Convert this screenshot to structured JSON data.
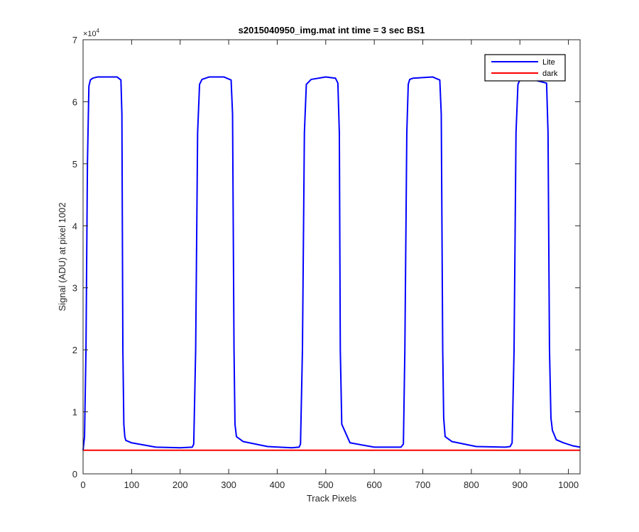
{
  "chart_data": {
    "type": "line",
    "title": "s2015040950_img.mat int time = 3 sec   BS1",
    "xlabel": "Track Pixels",
    "ylabel": "Signal (ADU) at pixel 1002",
    "xlim": [
      0,
      1024
    ],
    "ylim": [
      0,
      70000
    ],
    "xticks": [
      0,
      100,
      200,
      300,
      400,
      500,
      600,
      700,
      800,
      900,
      1000
    ],
    "xtick_labels": [
      "0",
      "100",
      "200",
      "300",
      "400",
      "500",
      "600",
      "700",
      "800",
      "900",
      "1000"
    ],
    "yticks": [
      0,
      10000,
      20000,
      30000,
      40000,
      50000,
      60000,
      70000
    ],
    "ytick_labels": [
      "0",
      "1",
      "2",
      "3",
      "4",
      "5",
      "6",
      "7"
    ],
    "y_exponent_base": "×10",
    "y_exponent_power": "4",
    "grid": false,
    "legend_position": "top-right",
    "series": [
      {
        "name": "Lite",
        "color": "#0000ff",
        "x": [
          0,
          3,
          6,
          9,
          12,
          15,
          20,
          30,
          50,
          70,
          78,
          80,
          82,
          84,
          86,
          88,
          100,
          150,
          200,
          225,
          228,
          232,
          236,
          240,
          245,
          260,
          290,
          305,
          308,
          311,
          313,
          316,
          330,
          380,
          430,
          445,
          448,
          452,
          456,
          460,
          470,
          500,
          520,
          525,
          528,
          530,
          533,
          550,
          600,
          655,
          660,
          663,
          667,
          670,
          673,
          680,
          720,
          735,
          738,
          741,
          743,
          746,
          760,
          810,
          870,
          880,
          884,
          888,
          892,
          896,
          900,
          930,
          955,
          958,
          961,
          964,
          967,
          975,
          990,
          1010,
          1024
        ],
        "y": [
          3800,
          6000,
          20000,
          50000,
          62500,
          63500,
          63800,
          64000,
          64000,
          64000,
          63500,
          58000,
          20000,
          8000,
          6000,
          5400,
          5000,
          4300,
          4200,
          4300,
          4800,
          20000,
          55000,
          62800,
          63600,
          64000,
          64000,
          63500,
          58000,
          20000,
          8000,
          6000,
          5200,
          4400,
          4200,
          4300,
          4800,
          20000,
          55000,
          62800,
          63600,
          64000,
          63800,
          63000,
          55000,
          20000,
          8000,
          5000,
          4300,
          4300,
          4800,
          20000,
          55000,
          62800,
          63600,
          63800,
          64000,
          63500,
          58000,
          20000,
          9000,
          6000,
          5200,
          4400,
          4300,
          4400,
          5000,
          20000,
          55000,
          62800,
          63500,
          63500,
          63000,
          55000,
          20000,
          9000,
          7000,
          5500,
          5000,
          4500,
          4300
        ]
      },
      {
        "name": "dark",
        "color": "#ff0000",
        "x": [
          0,
          1024
        ],
        "y": [
          3800,
          3800
        ]
      }
    ]
  }
}
